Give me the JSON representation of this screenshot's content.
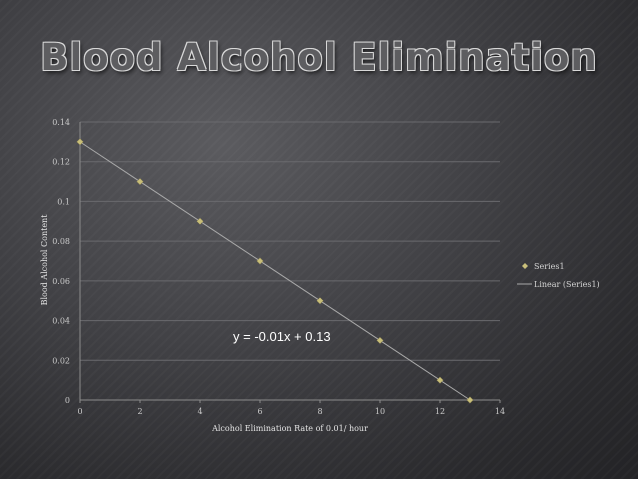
{
  "slide": {
    "title": "Blood Alcohol Elimination"
  },
  "chart_data": {
    "type": "scatter",
    "x": [
      0,
      2,
      4,
      6,
      8,
      10,
      12,
      13
    ],
    "series": [
      {
        "name": "Series1",
        "values": [
          0.13,
          0.11,
          0.09,
          0.07,
          0.05,
          0.03,
          0.01,
          0.0
        ]
      }
    ],
    "trendline": {
      "name": "Linear (Series1)",
      "slope": -0.01,
      "intercept": 0.13,
      "x_range": [
        0,
        13
      ]
    },
    "equation_label": "y = -0.01x + 0.13",
    "xlabel": "Alcohol Elimination Rate of 0.01/ hour",
    "ylabel": "Blood Alcohol Content",
    "xlim": [
      0,
      14
    ],
    "ylim": [
      0,
      0.14
    ],
    "x_ticks": [
      "0",
      "2",
      "4",
      "6",
      "8",
      "10",
      "12",
      "14"
    ],
    "y_ticks": [
      "0",
      "0.02",
      "0.04",
      "0.06",
      "0.08",
      "0.1",
      "0.12",
      "0.14"
    ],
    "grid": "horizontal",
    "legend_position": "right",
    "colors": {
      "marker": "#c9bf7a",
      "trendline": "#a9a9a9",
      "grid": "#6a6a6e",
      "axis": "#8c8c8c"
    }
  }
}
